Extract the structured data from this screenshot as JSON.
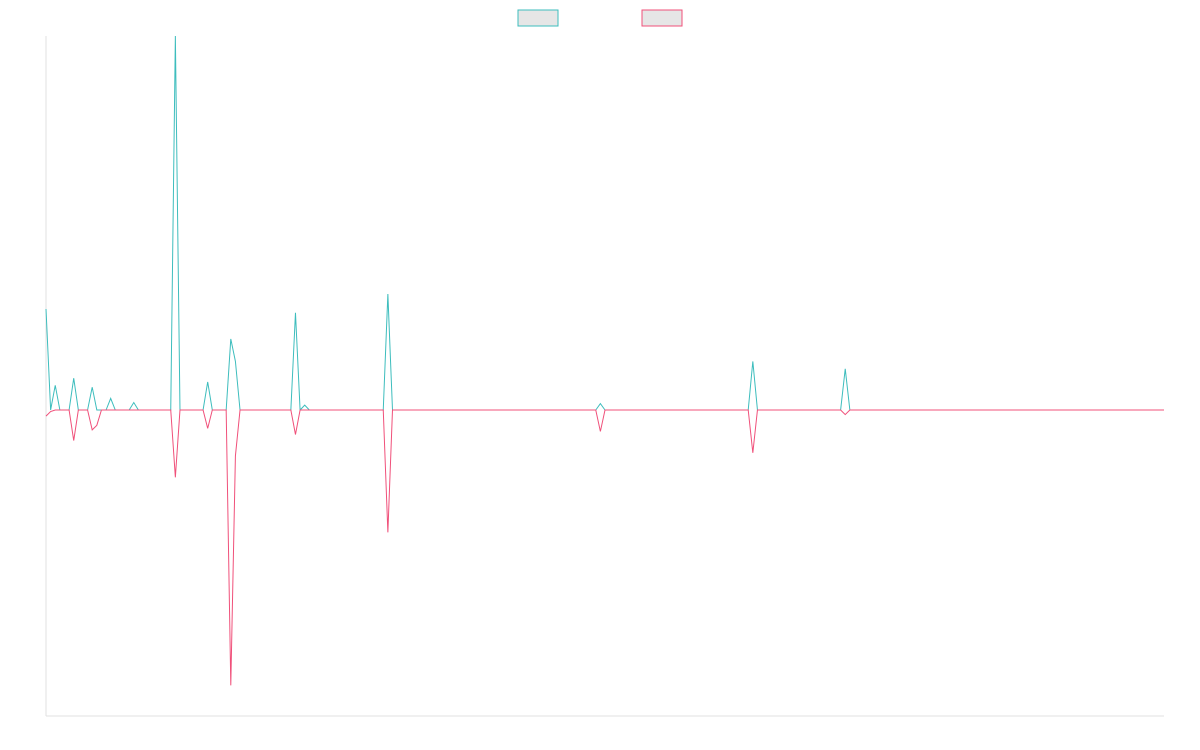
{
  "chart_data": {
    "type": "line",
    "x_count": 243,
    "ylim": [
      -1.0,
      1.0
    ],
    "legend_position": "top-center",
    "series": [
      {
        "color": "#3dbdbd",
        "fill": "#e6e6e6",
        "spikes": [
          [
            0,
            0.27
          ],
          [
            2,
            0.066
          ],
          [
            6,
            0.085
          ],
          [
            10,
            0.061
          ],
          [
            14,
            0.031
          ],
          [
            19,
            0.02
          ],
          [
            28,
            1.1
          ],
          [
            35,
            0.075
          ],
          [
            40,
            0.19
          ],
          [
            41,
            0.13
          ],
          [
            54,
            0.26
          ],
          [
            56,
            0.013
          ],
          [
            74,
            0.31
          ],
          [
            120,
            0.017
          ],
          [
            153,
            0.13
          ],
          [
            173,
            0.11
          ]
        ]
      },
      {
        "color": "#f0507a",
        "fill": "#e6e6e6",
        "spikes": [
          [
            0,
            -0.02
          ],
          [
            1,
            -0.005
          ],
          [
            6,
            -0.1
          ],
          [
            10,
            -0.065
          ],
          [
            11,
            -0.05
          ],
          [
            28,
            -0.22
          ],
          [
            35,
            -0.06
          ],
          [
            40,
            -0.9
          ],
          [
            41,
            -0.15
          ],
          [
            54,
            -0.08
          ],
          [
            74,
            -0.4
          ],
          [
            120,
            -0.07
          ],
          [
            153,
            -0.14
          ],
          [
            173,
            -0.015
          ]
        ]
      }
    ]
  }
}
